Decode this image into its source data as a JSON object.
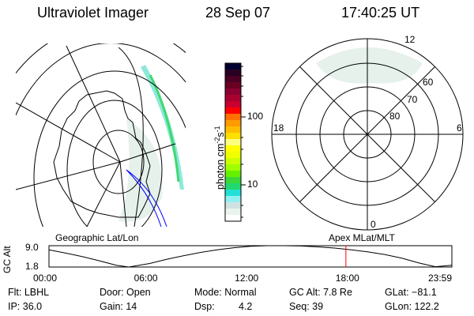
{
  "header": {
    "instrument": "Ultraviolet Imager",
    "date": "28 Sep 07",
    "time": "17:40:25 UT"
  },
  "left_panel": {
    "label": "Geographic Lat/Lon"
  },
  "right_panel": {
    "label": "Apex MLat/MLT",
    "mlt_labels": [
      "12",
      "6",
      "0",
      "18"
    ],
    "lat_labels": [
      "60",
      "70",
      "80"
    ]
  },
  "colorbar": {
    "unit_label": "photon cm",
    "unit_exp1": "-2",
    "unit_mid": "s",
    "unit_exp2": "-1",
    "tick_labels": [
      "100",
      "10"
    ],
    "colors": [
      "#00002e",
      "#2a0022",
      "#4a0022",
      "#6a0022",
      "#8a0030",
      "#a80030",
      "#c80030",
      "#ff0000",
      "#ff7000",
      "#ff9a00",
      "#ffbd00",
      "#ffdf00",
      "#ffff80",
      "#ffff00",
      "#f0ff00",
      "#ccff00",
      "#a0ff00",
      "#66f000",
      "#3ad83a",
      "#22d870",
      "#22e0d8",
      "#90f0f0",
      "#d0e2e2",
      "#eaf4ee",
      "#ffffff"
    ]
  },
  "chart_data": {
    "type": "line",
    "title": "",
    "ylabel": "GC Alt",
    "ylim": [
      1.8,
      9.0
    ],
    "ytick_labels": [
      "9.0",
      "1.8"
    ],
    "xlim": [
      0,
      23.983
    ],
    "xtick_labels": [
      "00:00",
      "06:00",
      "12:00",
      "18:00",
      "23:59"
    ],
    "xticks": [
      0,
      6,
      12,
      18,
      23.983
    ],
    "series": [
      {
        "name": "GC Alt (Re)",
        "color": "#000000",
        "x": [
          0,
          1,
          2,
          3,
          4,
          4.75,
          6,
          7,
          8,
          9,
          10,
          11,
          12,
          13,
          14,
          15,
          16,
          17,
          18,
          19,
          20,
          21,
          22,
          23,
          23.983
        ],
        "y": [
          7.6,
          6.5,
          5.3,
          3.9,
          2.4,
          1.8,
          3.0,
          4.4,
          5.6,
          6.7,
          7.6,
          8.3,
          8.8,
          9.0,
          9.0,
          8.9,
          8.6,
          8.2,
          7.6,
          6.9,
          6.0,
          4.8,
          3.2,
          1.9,
          2.4
        ]
      }
    ],
    "current_time_marker": {
      "x": 17.674,
      "color": "#ff0000"
    }
  },
  "status": {
    "filter": "Flt: LBHL",
    "ip": "IP: 36.0",
    "door": "Door: Open",
    "gain": "Gain: 14",
    "mode": "Mode: Normal",
    "dsp_label": "Dsp:",
    "dsp_value": "4.2",
    "gc_alt": "GC Alt: 7.8 Re",
    "seq": "Seq: 39",
    "glat": "GLat: −81.1",
    "glon": "GLon: 122.2"
  }
}
